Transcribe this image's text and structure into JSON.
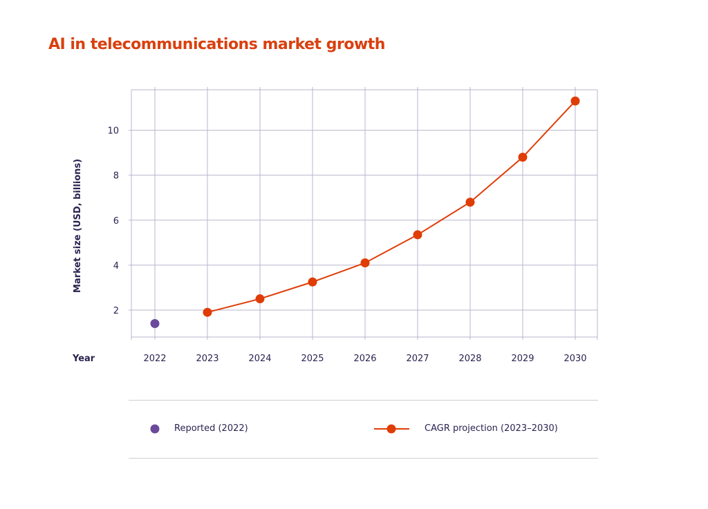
{
  "chart_data": {
    "type": "line",
    "title": "AI in telecommunications market growth",
    "xlabel": "Year",
    "ylabel": "Market size (USD, billions)",
    "categories": [
      "2022",
      "2023",
      "2024",
      "2025",
      "2026",
      "2027",
      "2028",
      "2029",
      "2030"
    ],
    "x_ticks": [
      "2022",
      "2023",
      "2024",
      "2025",
      "2026",
      "2027",
      "2028",
      "2029",
      "2030"
    ],
    "y_ticks": [
      "2",
      "4",
      "6",
      "8",
      "10"
    ],
    "ylim": [
      0.8,
      11.8
    ],
    "grid": true,
    "legend_position": "bottom",
    "series": [
      {
        "name": "Reported (2022)",
        "style": "marker",
        "color": "#6a4a9c",
        "x": [
          2022
        ],
        "values": [
          1.4
        ]
      },
      {
        "name": "CAGR projection (2023–2030)",
        "style": "line-marker",
        "color": "#e03c06",
        "x": [
          2023,
          2024,
          2025,
          2026,
          2027,
          2028,
          2029,
          2030
        ],
        "values": [
          1.9,
          2.5,
          3.25,
          4.1,
          5.35,
          6.8,
          8.8,
          11.3
        ]
      }
    ]
  }
}
